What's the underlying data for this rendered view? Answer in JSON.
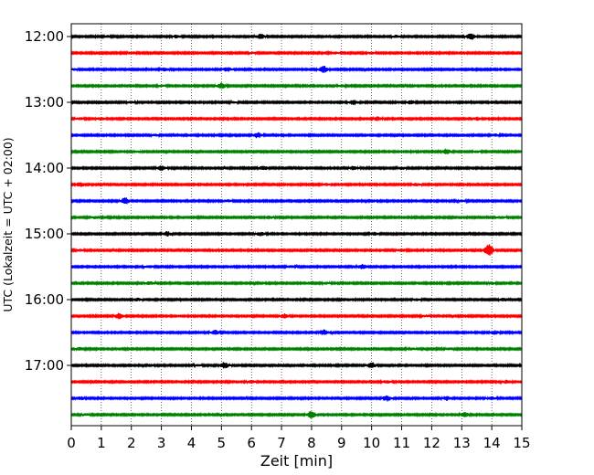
{
  "chart_data": {
    "type": "line",
    "xlabel": "Zeit  [min]",
    "ylabel": "UTC (Lokalzeit = UTC + 02:00)",
    "xlim": [
      0,
      15
    ],
    "x_ticks": [
      "0",
      "1",
      "2",
      "3",
      "4",
      "5",
      "6",
      "7",
      "8",
      "9",
      "10",
      "11",
      "12",
      "13",
      "14",
      "15"
    ],
    "y_ticks": [
      {
        "label": "12:00",
        "trace": 0
      },
      {
        "label": "13:00",
        "trace": 4
      },
      {
        "label": "14:00",
        "trace": 8
      },
      {
        "label": "15:00",
        "trace": 12
      },
      {
        "label": "16:00",
        "trace": 16
      },
      {
        "label": "17:00",
        "trace": 20
      }
    ],
    "grid_x": true,
    "trace_interval_minutes": 15,
    "color_cycle": [
      "#000000",
      "#ff0000",
      "#0000ff",
      "#008000"
    ],
    "series": [
      {
        "start": "12:00",
        "events": [
          [
            6.3,
            0.35
          ],
          [
            13.3,
            0.45
          ],
          [
            3.5,
            0.2
          ],
          [
            1.2,
            0.12
          ],
          [
            10.8,
            0.15
          ]
        ]
      },
      {
        "start": "12:15",
        "events": [
          [
            2.0,
            0.18
          ],
          [
            8.8,
            0.12
          ],
          [
            10.0,
            0.12
          ],
          [
            6.0,
            0.1
          ]
        ]
      },
      {
        "start": "12:30",
        "events": [
          [
            5.2,
            0.3
          ],
          [
            8.4,
            0.5
          ],
          [
            3.1,
            0.2
          ],
          [
            0.1,
            0.1
          ]
        ]
      },
      {
        "start": "12:45",
        "events": [
          [
            5.0,
            0.4
          ],
          [
            9.0,
            0.12
          ],
          [
            3.0,
            0.1
          ]
        ]
      },
      {
        "start": "13:00",
        "events": [
          [
            9.4,
            0.35
          ],
          [
            11.3,
            0.25
          ],
          [
            2.0,
            0.12
          ],
          [
            5.4,
            0.1
          ]
        ]
      },
      {
        "start": "13:15",
        "events": [
          [
            1.0,
            0.2
          ],
          [
            10.2,
            0.25
          ],
          [
            13.5,
            0.2
          ],
          [
            0.3,
            0.15
          ]
        ]
      },
      {
        "start": "13:30",
        "events": [
          [
            6.2,
            0.4
          ],
          [
            14.1,
            0.15
          ],
          [
            2.8,
            0.12
          ]
        ]
      },
      {
        "start": "13:45",
        "events": [
          [
            12.5,
            0.4
          ],
          [
            13.5,
            0.12
          ],
          [
            2.2,
            0.1
          ]
        ]
      },
      {
        "start": "14:00",
        "events": [
          [
            3.0,
            0.3
          ],
          [
            6.4,
            0.3
          ],
          [
            9.4,
            0.25
          ],
          [
            11.0,
            0.15
          ]
        ]
      },
      {
        "start": "14:15",
        "events": [
          [
            11.5,
            0.2
          ],
          [
            0.3,
            0.3
          ],
          [
            8.5,
            0.15
          ]
        ]
      },
      {
        "start": "14:30",
        "events": [
          [
            1.8,
            0.45
          ],
          [
            5.2,
            0.15
          ],
          [
            13.0,
            0.12
          ]
        ]
      },
      {
        "start": "14:45",
        "events": [
          [
            0.8,
            0.15
          ],
          [
            6.6,
            0.2
          ],
          [
            14.3,
            0.18
          ]
        ]
      },
      {
        "start": "15:00",
        "events": [
          [
            3.2,
            0.3
          ],
          [
            6.3,
            0.25
          ],
          [
            10.1,
            0.2
          ]
        ]
      },
      {
        "start": "15:15",
        "events": [
          [
            13.9,
            0.95
          ],
          [
            11.0,
            0.2
          ],
          [
            0.3,
            0.12
          ]
        ]
      },
      {
        "start": "15:30",
        "events": [
          [
            9.7,
            0.35
          ],
          [
            7.3,
            0.15
          ],
          [
            2.6,
            0.15
          ]
        ]
      },
      {
        "start": "15:45",
        "events": [
          [
            2.6,
            0.22
          ],
          [
            14.0,
            0.15
          ],
          [
            8.5,
            0.12
          ]
        ]
      },
      {
        "start": "16:00",
        "events": [
          [
            2.2,
            0.2
          ],
          [
            11.5,
            0.15
          ],
          [
            14.4,
            0.2
          ]
        ]
      },
      {
        "start": "16:15",
        "events": [
          [
            1.6,
            0.45
          ],
          [
            7.1,
            0.3
          ],
          [
            11.8,
            0.12
          ]
        ]
      },
      {
        "start": "16:30",
        "events": [
          [
            4.8,
            0.3
          ],
          [
            8.4,
            0.4
          ],
          [
            14.1,
            0.25
          ]
        ]
      },
      {
        "start": "16:45",
        "events": [
          [
            0.3,
            0.2
          ],
          [
            11.3,
            0.2
          ],
          [
            12.6,
            0.15
          ]
        ]
      },
      {
        "start": "17:00",
        "events": [
          [
            5.1,
            0.45
          ],
          [
            10.0,
            0.45
          ],
          [
            4.2,
            0.12
          ]
        ]
      },
      {
        "start": "17:15",
        "events": [
          [
            6.0,
            0.2
          ],
          [
            10.5,
            0.18
          ],
          [
            14.5,
            0.25
          ]
        ]
      },
      {
        "start": "17:30",
        "events": [
          [
            10.5,
            0.4
          ],
          [
            12.5,
            0.3
          ],
          [
            14.0,
            0.2
          ],
          [
            0.3,
            0.25
          ]
        ]
      },
      {
        "start": "17:45",
        "events": [
          [
            8.0,
            0.55
          ],
          [
            13.1,
            0.3
          ],
          [
            0.5,
            0.12
          ]
        ]
      }
    ]
  }
}
